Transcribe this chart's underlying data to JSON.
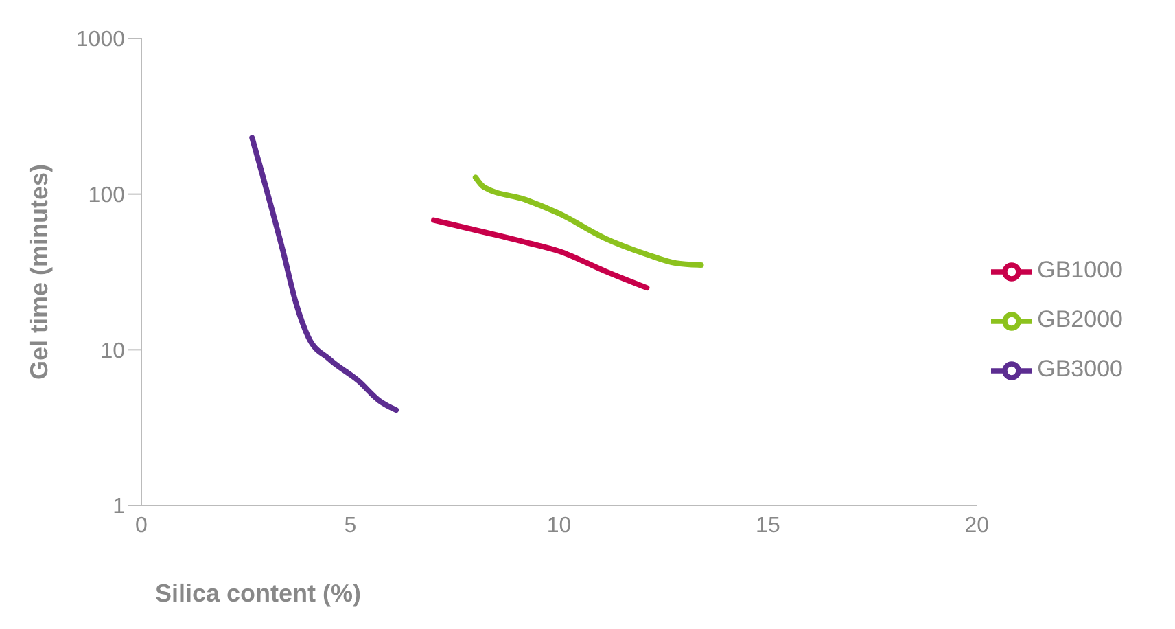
{
  "chart_data": {
    "type": "line",
    "xlabel": "Silica content (%)",
    "ylabel": "Gel time (minutes)",
    "xlim": [
      0,
      20
    ],
    "xticks": [
      0,
      5,
      10,
      15,
      20
    ],
    "ylim": [
      1,
      1000
    ],
    "yticks": [
      1,
      10,
      100,
      1000
    ],
    "log": "y",
    "grid": false,
    "legend": "right",
    "marker": "none",
    "line_style": "solid",
    "series": [
      {
        "name": "GB1000",
        "color": "#c8004a",
        "x": [
          7.0,
          8.2,
          9.2,
          10.0,
          11.1,
          12.1
        ],
        "values": [
          68,
          57,
          49,
          43,
          32,
          25
        ]
      },
      {
        "name": "GB2000",
        "color": "#8cc21e",
        "x": [
          8.0,
          8.2,
          9.2,
          10.0,
          11.1,
          12.1,
          12.8,
          13.4
        ],
        "values": [
          128,
          111,
          92,
          75,
          52,
          41,
          36,
          35
        ]
      },
      {
        "name": "GB3000",
        "color": "#5c2d91",
        "x": [
          2.65,
          3.4,
          3.7,
          4.0,
          4.5,
          5.2,
          5.7,
          6.1
        ],
        "values": [
          230,
          42,
          20,
          12,
          8.7,
          6.3,
          4.7,
          4.1
        ]
      }
    ]
  }
}
